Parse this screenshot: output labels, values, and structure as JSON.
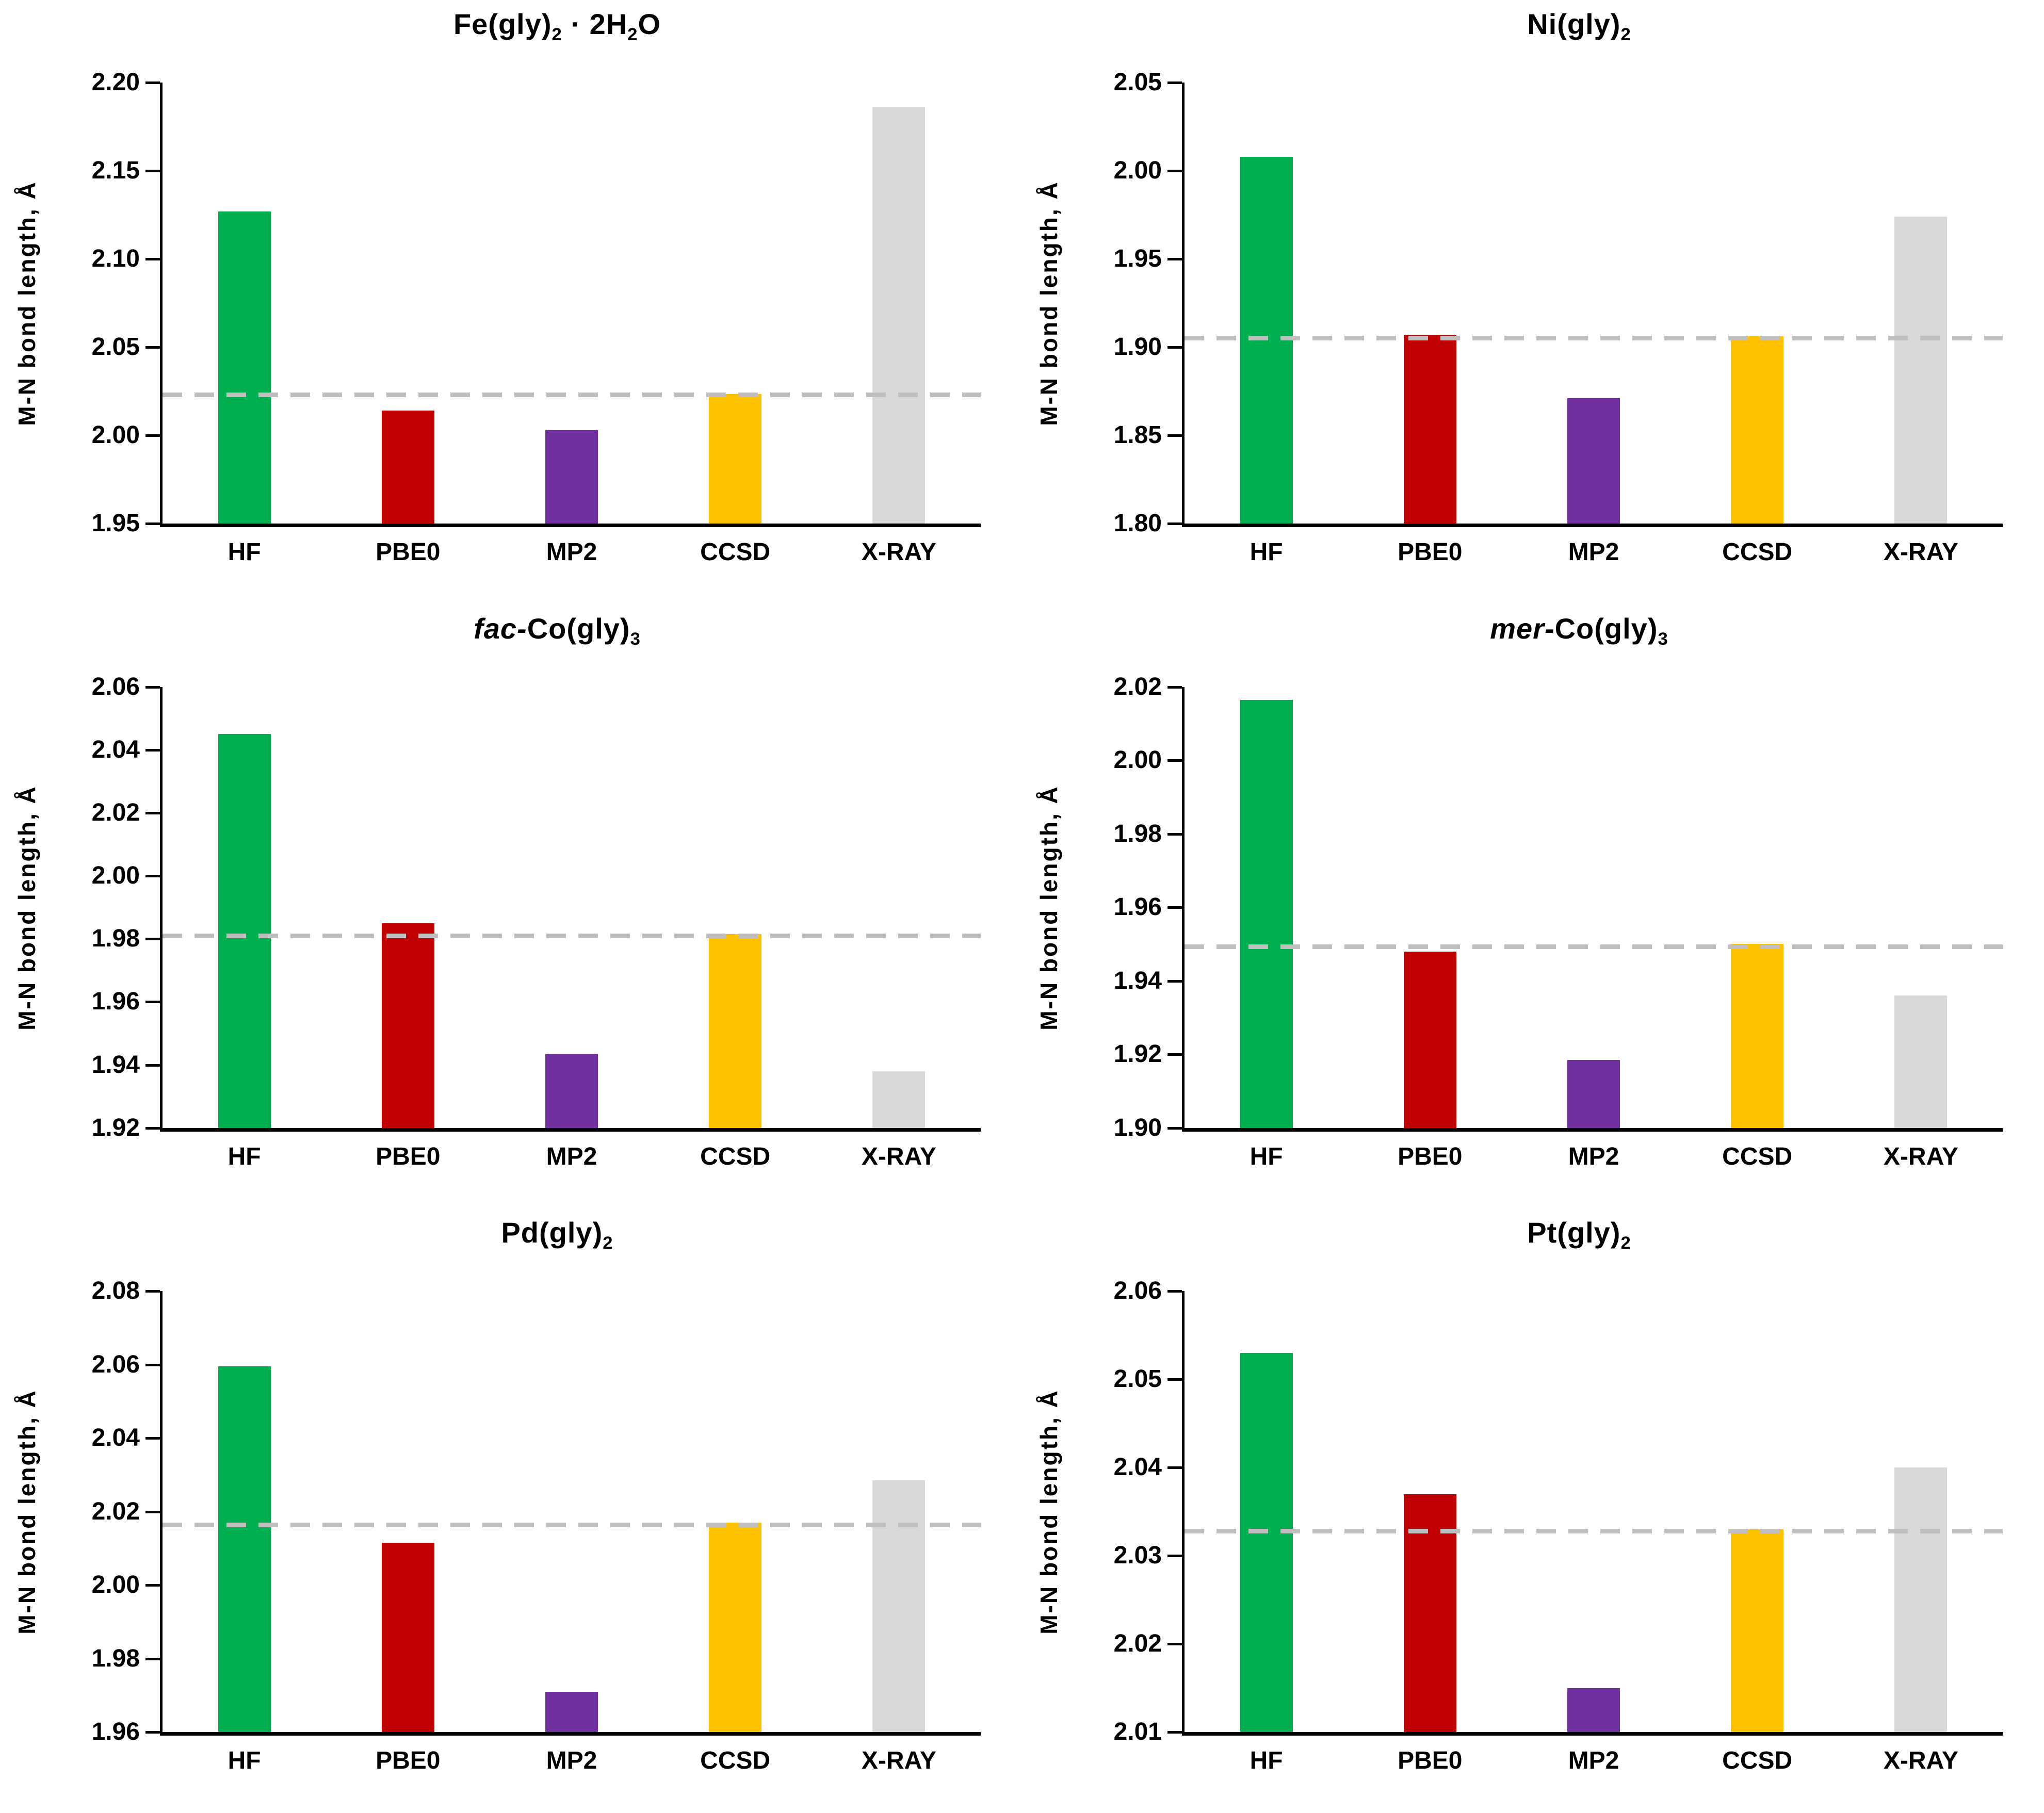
{
  "figure": {
    "ylabel": "M-N bond length, Å",
    "categories": [
      "HF",
      "PBE0",
      "MP2",
      "CCSD",
      "X-RAY"
    ],
    "palette": {
      "hf_green": "#00B050",
      "pbe0_red": "#C00000",
      "mp2_purple": "#7030A0",
      "ccsd_yellow": "#FFC000",
      "xray_gray": "#D9D9D9",
      "dashed_line": "#BFBFBF",
      "axis": "#000000",
      "text": "#000000",
      "background": "#FFFFFF"
    }
  },
  "chart_data": [
    {
      "id": "fe-gly2-2h2o",
      "type": "bar",
      "title": "Fe(gly)₂ · 2H₂O",
      "title_parts": [
        {
          "text": "Fe(gly)"
        },
        {
          "text": "2",
          "sub": true
        },
        {
          "text": " · 2H"
        },
        {
          "text": "2",
          "sub": true
        },
        {
          "text": "O"
        }
      ],
      "ylabel": "M-N bond length, Å",
      "categories": [
        "HF",
        "PBE0",
        "MP2",
        "CCSD",
        "X-RAY"
      ],
      "values": [
        2.127,
        2.014,
        2.003,
        2.0235,
        2.186
      ],
      "bar_colors": [
        "#00B050",
        "#C00000",
        "#7030A0",
        "#FFC000",
        "#D9D9D9"
      ],
      "ylim": [
        1.95,
        2.2
      ],
      "yticks": [
        "2.20",
        "2.15",
        "2.10",
        "2.05",
        "2.00",
        "1.95"
      ],
      "dashed_reference": 2.023,
      "grid": false,
      "legend": "none"
    },
    {
      "id": "ni-gly2",
      "type": "bar",
      "title": "Ni(gly)₂",
      "title_parts": [
        {
          "text": "Ni(gly)"
        },
        {
          "text": "2",
          "sub": true
        }
      ],
      "ylabel": "M-N bond length, Å",
      "categories": [
        "HF",
        "PBE0",
        "MP2",
        "CCSD",
        "X-RAY"
      ],
      "values": [
        2.008,
        1.907,
        1.871,
        1.906,
        1.974
      ],
      "bar_colors": [
        "#00B050",
        "#C00000",
        "#7030A0",
        "#FFC000",
        "#D9D9D9"
      ],
      "ylim": [
        1.8,
        2.05
      ],
      "yticks": [
        "2.05",
        "2.00",
        "1.95",
        "1.90",
        "1.85",
        "1.80"
      ],
      "dashed_reference": 1.9053,
      "grid": false,
      "legend": "none"
    },
    {
      "id": "fac-co-gly3",
      "type": "bar",
      "title": "fac-Co(gly)₃",
      "title_parts": [
        {
          "text": "fac-",
          "italic": true
        },
        {
          "text": "Co(gly)"
        },
        {
          "text": "3",
          "sub": true
        }
      ],
      "ylabel": "M-N bond length, Å",
      "categories": [
        "HF",
        "PBE0",
        "MP2",
        "CCSD",
        "X-RAY"
      ],
      "values": [
        2.045,
        1.985,
        1.9435,
        1.9815,
        1.938
      ],
      "bar_colors": [
        "#00B050",
        "#C00000",
        "#7030A0",
        "#FFC000",
        "#D9D9D9"
      ],
      "ylim": [
        1.92,
        2.06
      ],
      "yticks": [
        "2.06",
        "2.04",
        "2.02",
        "2.00",
        "1.98",
        "1.96",
        "1.94",
        "1.92"
      ],
      "dashed_reference": 1.981,
      "grid": false,
      "legend": "none"
    },
    {
      "id": "mer-co-gly3",
      "type": "bar",
      "title": "mer-Co(gly)₃",
      "title_parts": [
        {
          "text": "mer-",
          "italic": true
        },
        {
          "text": "Co(gly)"
        },
        {
          "text": "3",
          "sub": true
        }
      ],
      "ylabel": "M-N bond length, Å",
      "categories": [
        "HF",
        "PBE0",
        "MP2",
        "CCSD",
        "X-RAY"
      ],
      "values": [
        2.0165,
        1.948,
        1.9185,
        1.95,
        1.936
      ],
      "bar_colors": [
        "#00B050",
        "#C00000",
        "#7030A0",
        "#FFC000",
        "#D9D9D9"
      ],
      "ylim": [
        1.9,
        2.02
      ],
      "yticks": [
        "2.02",
        "2.00",
        "1.98",
        "1.96",
        "1.94",
        "1.92",
        "1.90"
      ],
      "dashed_reference": 1.9493,
      "grid": false,
      "legend": "none"
    },
    {
      "id": "pd-gly2",
      "type": "bar",
      "title": "Pd(gly)₂",
      "title_parts": [
        {
          "text": "Pd(gly)"
        },
        {
          "text": "2",
          "sub": true
        }
      ],
      "ylabel": "M-N bond length, Å",
      "categories": [
        "HF",
        "PBE0",
        "MP2",
        "CCSD",
        "X-RAY"
      ],
      "values": [
        2.0595,
        2.0115,
        1.971,
        2.017,
        2.0285
      ],
      "bar_colors": [
        "#00B050",
        "#C00000",
        "#7030A0",
        "#FFC000",
        "#D9D9D9"
      ],
      "ylim": [
        1.96,
        2.08
      ],
      "yticks": [
        "2.08",
        "2.06",
        "2.04",
        "2.02",
        "2.00",
        "1.98",
        "1.96"
      ],
      "dashed_reference": 2.0165,
      "grid": false,
      "legend": "none"
    },
    {
      "id": "pt-gly2",
      "type": "bar",
      "title": "Pt(gly)₂",
      "title_parts": [
        {
          "text": "Pt(gly)"
        },
        {
          "text": "2",
          "sub": true
        }
      ],
      "ylabel": "M-N bond length, Å",
      "categories": [
        "HF",
        "PBE0",
        "MP2",
        "CCSD",
        "X-RAY"
      ],
      "values": [
        2.053,
        2.037,
        2.015,
        2.033,
        2.04
      ],
      "bar_colors": [
        "#00B050",
        "#C00000",
        "#7030A0",
        "#FFC000",
        "#D9D9D9"
      ],
      "ylim": [
        2.01,
        2.06
      ],
      "yticks": [
        "2.06",
        "2.05",
        "2.04",
        "2.03",
        "2.02",
        "2.01"
      ],
      "dashed_reference": 2.0328,
      "grid": false,
      "legend": "none"
    }
  ]
}
